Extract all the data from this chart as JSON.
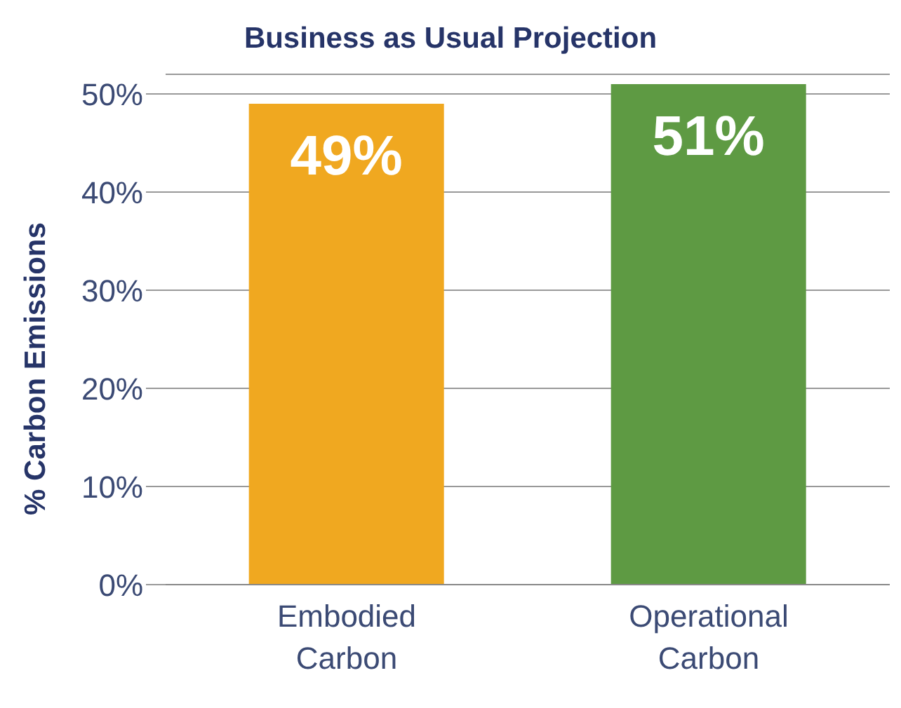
{
  "chart_data": {
    "type": "bar",
    "title": "Business as Usual Projection",
    "ylabel": "% Carbon Emissions",
    "categories": [
      "Embodied Carbon",
      "Operational Carbon"
    ],
    "values": [
      49,
      51
    ],
    "colors": [
      "#f0a820",
      "#5e9a43"
    ],
    "value_labels": [
      "49%",
      "51%"
    ],
    "ylim": [
      0,
      52
    ],
    "yticks": [
      {
        "value": 0,
        "label": "0%"
      },
      {
        "value": 10,
        "label": "10%"
      },
      {
        "value": 20,
        "label": "20%"
      },
      {
        "value": 30,
        "label": "30%"
      },
      {
        "value": 40,
        "label": "40%"
      },
      {
        "value": 50,
        "label": "50%"
      }
    ],
    "grid": "y",
    "legend": false
  }
}
